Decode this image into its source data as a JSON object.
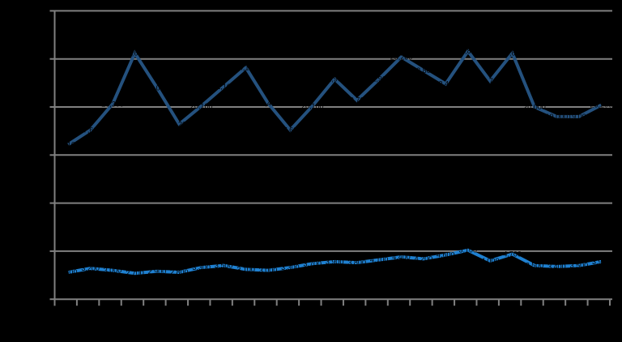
{
  "window": {
    "background_color": "#000000"
  },
  "chart_data": {
    "type": "line",
    "title": "",
    "legend_position": "none",
    "gridlines": true,
    "grid_color": "#808080",
    "axis_color": "#808080",
    "background_color": "#000000",
    "data_label_color": "#000000",
    "ylim": [
      0,
      30000
    ],
    "y_tick_step": 5000,
    "x_tick_count": 26,
    "x_labels_visible": false,
    "y_labels_visible": false,
    "series": [
      {
        "name": "dark-blue-series",
        "color": "#24517E",
        "stroke_width": 4,
        "values": [
          16100,
          17600,
          20300,
          25600,
          22000,
          18200,
          20100,
          22100,
          24100,
          20400,
          17600,
          20100,
          22900,
          20700,
          22900,
          25200,
          23800,
          22400,
          25800,
          22700,
          25600,
          20000,
          19000,
          19000,
          20200
        ]
      },
      {
        "name": "light-blue-series",
        "color": "#1F80D0",
        "stroke_width": 4,
        "values": [
          2800,
          3200,
          3000,
          2700,
          2900,
          2800,
          3300,
          3500,
          3100,
          3000,
          3300,
          3700,
          3900,
          3800,
          4100,
          4400,
          4200,
          4600,
          5100,
          4000,
          4700,
          3500,
          3400,
          3500,
          3900
        ]
      }
    ]
  }
}
